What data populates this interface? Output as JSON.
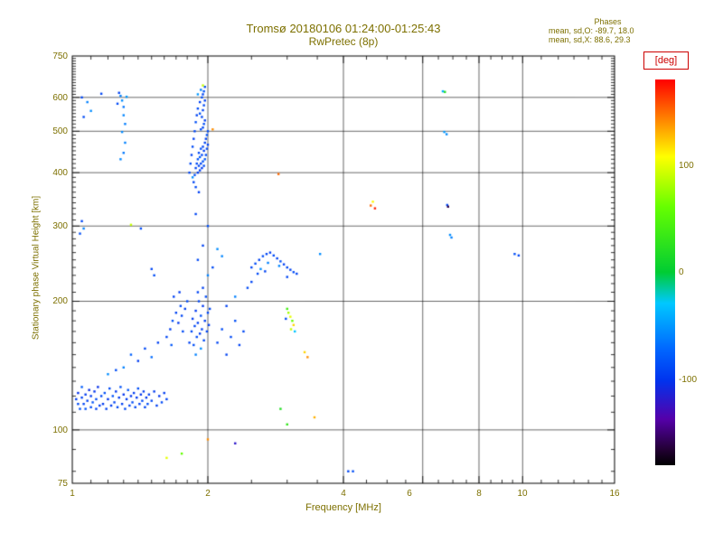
{
  "header": {
    "title": "Tromsø 20180106 01:24:00-01:25:43",
    "subtitle": "RwPretec (8p)",
    "stats_title": "Phases",
    "stats_o": "mean, sd,O: -89.7, 18.0",
    "stats_x": "mean, sd,X:  88.6, 29.3"
  },
  "colors": {
    "text": "#7d7000",
    "colorbar_label": "#cc0000",
    "frame": "#000000"
  },
  "colorbar": {
    "label": "[deg]",
    "tick_labels": [
      "100",
      "0",
      "-100"
    ],
    "vmin": -180,
    "vmax": 180
  },
  "chart_data": {
    "type": "scatter",
    "title": "Tromsø 20180106 01:24:00-01:25:43",
    "subtitle": "RwPretec (8p)",
    "xlabel": "Frequency [MHz]",
    "ylabel": "Stationary phase Virtual Height [km]",
    "xscale": "log",
    "yscale": "log",
    "xlim": [
      1,
      16
    ],
    "ylim": [
      75,
      750
    ],
    "grid": true,
    "x_major": [
      2,
      4,
      6,
      8,
      10
    ],
    "x_minor": [
      1.1,
      1.2,
      1.3,
      1.4,
      1.5,
      1.6,
      1.7,
      1.8,
      1.9,
      2.5,
      3,
      3.5,
      4.5,
      5,
      5.5,
      6.5,
      7,
      7.5,
      8.5,
      9,
      9.5,
      11,
      12,
      13,
      14,
      15
    ],
    "y_major": [
      100,
      200,
      300,
      400,
      500,
      600
    ],
    "x_tick_labels": [
      "1",
      "2",
      "4",
      "6",
      "8",
      "10",
      "16"
    ],
    "x_tick_values": [
      1,
      2,
      4,
      6,
      8,
      10,
      16
    ],
    "y_tick_labels": [
      "750",
      "600",
      "500",
      "400",
      "300",
      "200",
      "100",
      "75"
    ],
    "y_tick_values": [
      750,
      600,
      500,
      400,
      300,
      200,
      100,
      75
    ],
    "color_label": "[deg]",
    "color_range": [
      -180,
      180
    ],
    "points": [
      [
        1.02,
        118,
        -95
      ],
      [
        1.03,
        115,
        -88
      ],
      [
        1.03,
        122,
        -102
      ],
      [
        1.04,
        112,
        -85
      ],
      [
        1.05,
        119,
        -93
      ],
      [
        1.05,
        126,
        -78
      ],
      [
        1.06,
        115,
        -90
      ],
      [
        1.07,
        121,
        -97
      ],
      [
        1.07,
        112,
        -84
      ],
      [
        1.08,
        117,
        -92
      ],
      [
        1.09,
        124,
        -105
      ],
      [
        1.1,
        113,
        -88
      ],
      [
        1.1,
        120,
        -95
      ],
      [
        1.11,
        116,
        -82
      ],
      [
        1.12,
        123,
        -99
      ],
      [
        1.13,
        112,
        -91
      ],
      [
        1.13,
        118,
        -86
      ],
      [
        1.14,
        126,
        -103
      ],
      [
        1.15,
        114,
        -94
      ],
      [
        1.16,
        120,
        -89
      ],
      [
        1.17,
        115,
        -97
      ],
      [
        1.18,
        122,
        -85
      ],
      [
        1.19,
        112,
        -92
      ],
      [
        1.2,
        118,
        -100
      ],
      [
        1.21,
        125,
        -87
      ],
      [
        1.22,
        114,
        -95
      ],
      [
        1.23,
        120,
        -83
      ],
      [
        1.24,
        116,
        -91
      ],
      [
        1.25,
        123,
        -98
      ],
      [
        1.26,
        113,
        -89
      ],
      [
        1.27,
        119,
        -96
      ],
      [
        1.28,
        126,
        -84
      ],
      [
        1.29,
        115,
        -93
      ],
      [
        1.3,
        121,
        -101
      ],
      [
        1.31,
        112,
        -88
      ],
      [
        1.32,
        118,
        -95
      ],
      [
        1.33,
        124,
        -80
      ],
      [
        1.34,
        114,
        -92
      ],
      [
        1.35,
        120,
        -99
      ],
      [
        1.36,
        116,
        -86
      ],
      [
        1.37,
        122,
        -94
      ],
      [
        1.38,
        113,
        -90
      ],
      [
        1.39,
        119,
        -97
      ],
      [
        1.4,
        125,
        -85
      ],
      [
        1.41,
        115,
        -93
      ],
      [
        1.42,
        121,
        -100
      ],
      [
        1.43,
        117,
        -88
      ],
      [
        1.44,
        123,
        -95
      ],
      [
        1.45,
        113,
        -91
      ],
      [
        1.46,
        119,
        -98
      ],
      [
        1.47,
        115,
        -86
      ],
      [
        1.48,
        121,
        -94
      ],
      [
        1.5,
        117,
        -90
      ],
      [
        1.52,
        123,
        -97
      ],
      [
        1.54,
        114,
        -93
      ],
      [
        1.56,
        120,
        -100
      ],
      [
        1.58,
        116,
        -88
      ],
      [
        1.6,
        122,
        -95
      ],
      [
        1.62,
        118,
        -91
      ],
      [
        1.2,
        135,
        -55
      ],
      [
        1.25,
        138,
        -85
      ],
      [
        1.3,
        140,
        -60
      ],
      [
        1.35,
        150,
        -75
      ],
      [
        1.4,
        145,
        -95
      ],
      [
        1.45,
        155,
        -88
      ],
      [
        1.5,
        148,
        -70
      ],
      [
        1.55,
        160,
        -92
      ],
      [
        1.62,
        165,
        -90
      ],
      [
        1.65,
        172,
        -95
      ],
      [
        1.67,
        180,
        -85
      ],
      [
        1.7,
        188,
        -92
      ],
      [
        1.72,
        178,
        -98
      ],
      [
        1.74,
        195,
        -88
      ],
      [
        1.68,
        205,
        -93
      ],
      [
        1.66,
        158,
        -80
      ],
      [
        1.73,
        210,
        -96
      ],
      [
        1.75,
        185,
        -90
      ],
      [
        1.76,
        170,
        -87
      ],
      [
        1.78,
        192,
        -94
      ],
      [
        1.8,
        200,
        -89
      ],
      [
        1.82,
        160,
        -92
      ],
      [
        1.84,
        170,
        -88
      ],
      [
        1.85,
        182,
        -95
      ],
      [
        1.86,
        158,
        -85
      ],
      [
        1.87,
        175,
        -90
      ],
      [
        1.88,
        190,
        -97
      ],
      [
        1.89,
        165,
        -87
      ],
      [
        1.9,
        178,
        -93
      ],
      [
        1.91,
        200,
        -90
      ],
      [
        1.92,
        168,
        -96
      ],
      [
        1.93,
        185,
        -84
      ],
      [
        1.94,
        172,
        -91
      ],
      [
        1.95,
        195,
        -98
      ],
      [
        1.96,
        162,
        -88
      ],
      [
        1.97,
        180,
        -94
      ],
      [
        1.98,
        205,
        -86
      ],
      [
        1.99,
        170,
        -92
      ],
      [
        2.0,
        188,
        -90
      ],
      [
        2.01,
        176,
        -95
      ],
      [
        2.02,
        192,
        -89
      ],
      [
        1.9,
        210,
        -91
      ],
      [
        1.95,
        215,
        -93
      ],
      [
        1.88,
        150,
        -60
      ],
      [
        1.93,
        155,
        -55
      ],
      [
        1.86,
        380,
        -90
      ],
      [
        1.87,
        395,
        -85
      ],
      [
        1.88,
        410,
        -92
      ],
      [
        1.89,
        420,
        -88
      ],
      [
        1.9,
        400,
        -95
      ],
      [
        1.9,
        430,
        -82
      ],
      [
        1.91,
        415,
        -90
      ],
      [
        1.91,
        445,
        -87
      ],
      [
        1.92,
        405,
        -93
      ],
      [
        1.92,
        435,
        -78
      ],
      [
        1.93,
        420,
        -90
      ],
      [
        1.93,
        455,
        -85
      ],
      [
        1.94,
        410,
        -96
      ],
      [
        1.94,
        440,
        -88
      ],
      [
        1.95,
        425,
        -83
      ],
      [
        1.95,
        460,
        -91
      ],
      [
        1.96,
        415,
        -87
      ],
      [
        1.96,
        450,
        -94
      ],
      [
        1.97,
        430,
        -80
      ],
      [
        1.97,
        470,
        -90
      ],
      [
        1.98,
        440,
        -86
      ],
      [
        1.98,
        480,
        -93
      ],
      [
        1.99,
        455,
        -89
      ],
      [
        1.99,
        490,
        -84
      ],
      [
        2.0,
        465,
        -92
      ],
      [
        2.0,
        500,
        -88
      ],
      [
        1.95,
        510,
        -90
      ],
      [
        1.96,
        520,
        -85
      ],
      [
        1.97,
        530,
        -95
      ],
      [
        1.93,
        505,
        -87
      ],
      [
        1.94,
        540,
        -90
      ],
      [
        1.92,
        550,
        -83
      ],
      [
        1.95,
        560,
        -91
      ],
      [
        1.96,
        575,
        -88
      ],
      [
        1.97,
        590,
        -94
      ],
      [
        1.94,
        600,
        -86
      ],
      [
        1.95,
        610,
        -90
      ],
      [
        1.96,
        620,
        -82
      ],
      [
        1.97,
        635,
        -89
      ],
      [
        1.92,
        585,
        -93
      ],
      [
        1.9,
        565,
        -87
      ],
      [
        1.89,
        545,
        -91
      ],
      [
        1.88,
        525,
        -85
      ],
      [
        1.87,
        500,
        -90
      ],
      [
        1.86,
        480,
        -94
      ],
      [
        1.85,
        460,
        -88
      ],
      [
        1.84,
        440,
        -92
      ],
      [
        1.83,
        420,
        -86
      ],
      [
        1.82,
        400,
        -90
      ],
      [
        1.85,
        390,
        -55
      ],
      [
        1.9,
        610,
        -50
      ],
      [
        1.93,
        625,
        -60
      ],
      [
        1.88,
        370,
        -89
      ],
      [
        1.91,
        360,
        -93
      ],
      [
        1.95,
        640,
        90
      ],
      [
        1.9,
        250,
        -88
      ],
      [
        1.95,
        270,
        -92
      ],
      [
        2.0,
        300,
        -85
      ],
      [
        1.88,
        320,
        -90
      ],
      [
        2.05,
        240,
        -87
      ],
      [
        2.0,
        230,
        -60
      ],
      [
        2.1,
        265,
        -55
      ],
      [
        2.15,
        255,
        -58
      ],
      [
        1.28,
        605,
        -60
      ],
      [
        1.29,
        590,
        -55
      ],
      [
        1.3,
        570,
        -65
      ],
      [
        1.3,
        545,
        -58
      ],
      [
        1.31,
        520,
        -62
      ],
      [
        1.29,
        498,
        -56
      ],
      [
        1.31,
        470,
        -60
      ],
      [
        1.3,
        445,
        -64
      ],
      [
        1.28,
        430,
        -58
      ],
      [
        1.32,
        602,
        -50
      ],
      [
        1.27,
        615,
        -92
      ],
      [
        1.26,
        580,
        -88
      ],
      [
        1.05,
        600,
        -90
      ],
      [
        1.08,
        585,
        -60
      ],
      [
        1.1,
        558,
        -55
      ],
      [
        1.06,
        540,
        -88
      ],
      [
        1.16,
        612,
        -90
      ],
      [
        1.05,
        308,
        -90
      ],
      [
        1.06,
        296,
        -60
      ],
      [
        1.04,
        288,
        -85
      ],
      [
        1.35,
        302,
        90
      ],
      [
        1.42,
        296,
        -88
      ],
      [
        1.5,
        238,
        -90
      ],
      [
        1.52,
        230,
        -86
      ],
      [
        2.1,
        160,
        -90
      ],
      [
        2.15,
        172,
        -87
      ],
      [
        2.2,
        150,
        -92
      ],
      [
        2.25,
        165,
        -88
      ],
      [
        2.3,
        180,
        -85
      ],
      [
        2.35,
        158,
        -91
      ],
      [
        2.4,
        170,
        -89
      ],
      [
        2.2,
        195,
        -93
      ],
      [
        2.3,
        205,
        -60
      ],
      [
        2.45,
        215,
        -88
      ],
      [
        2.5,
        222,
        -90
      ],
      [
        2.5,
        240,
        -90
      ],
      [
        2.55,
        245,
        -88
      ],
      [
        2.6,
        250,
        -92
      ],
      [
        2.65,
        255,
        -86
      ],
      [
        2.7,
        258,
        -90
      ],
      [
        2.75,
        260,
        -94
      ],
      [
        2.8,
        256,
        -88
      ],
      [
        2.85,
        252,
        -91
      ],
      [
        2.9,
        248,
        -85
      ],
      [
        2.95,
        244,
        -93
      ],
      [
        3.0,
        240,
        -89
      ],
      [
        3.05,
        237,
        -92
      ],
      [
        3.1,
        234,
        -87
      ],
      [
        3.15,
        232,
        -90
      ],
      [
        2.62,
        238,
        -55
      ],
      [
        2.72,
        246,
        -60
      ],
      [
        2.88,
        242,
        -58
      ],
      [
        3.0,
        228,
        -90
      ],
      [
        2.58,
        232,
        -88
      ],
      [
        2.68,
        235,
        -91
      ],
      [
        3.0,
        192,
        40
      ],
      [
        3.02,
        188,
        80
      ],
      [
        3.05,
        184,
        100
      ],
      [
        3.08,
        180,
        60
      ],
      [
        3.1,
        176,
        120
      ],
      [
        3.06,
        172,
        90
      ],
      [
        2.98,
        182,
        -88
      ],
      [
        3.12,
        170,
        -30
      ],
      [
        3.28,
        152,
        120
      ],
      [
        3.33,
        148,
        140
      ],
      [
        2.87,
        397,
        150
      ],
      [
        2.05,
        505,
        140
      ],
      [
        2.0,
        95,
        140
      ],
      [
        1.62,
        86,
        100
      ],
      [
        4.1,
        80,
        -90
      ],
      [
        4.2,
        80,
        -85
      ],
      [
        3.0,
        103,
        30
      ],
      [
        2.9,
        112,
        20
      ],
      [
        3.45,
        107,
        130
      ],
      [
        2.3,
        93,
        -120
      ],
      [
        1.75,
        88,
        60
      ],
      [
        6.65,
        620,
        -40
      ],
      [
        6.72,
        618,
        20
      ],
      [
        6.7,
        498,
        -50
      ],
      [
        6.78,
        492,
        -55
      ],
      [
        6.8,
        336,
        -88
      ],
      [
        6.83,
        333,
        -160
      ],
      [
        6.9,
        286,
        -55
      ],
      [
        6.95,
        282,
        -60
      ],
      [
        9.6,
        258,
        -85
      ],
      [
        9.8,
        256,
        -90
      ],
      [
        4.6,
        335,
        150
      ],
      [
        4.7,
        330,
        170
      ],
      [
        4.65,
        342,
        110
      ],
      [
        3.55,
        258,
        -55
      ]
    ]
  }
}
